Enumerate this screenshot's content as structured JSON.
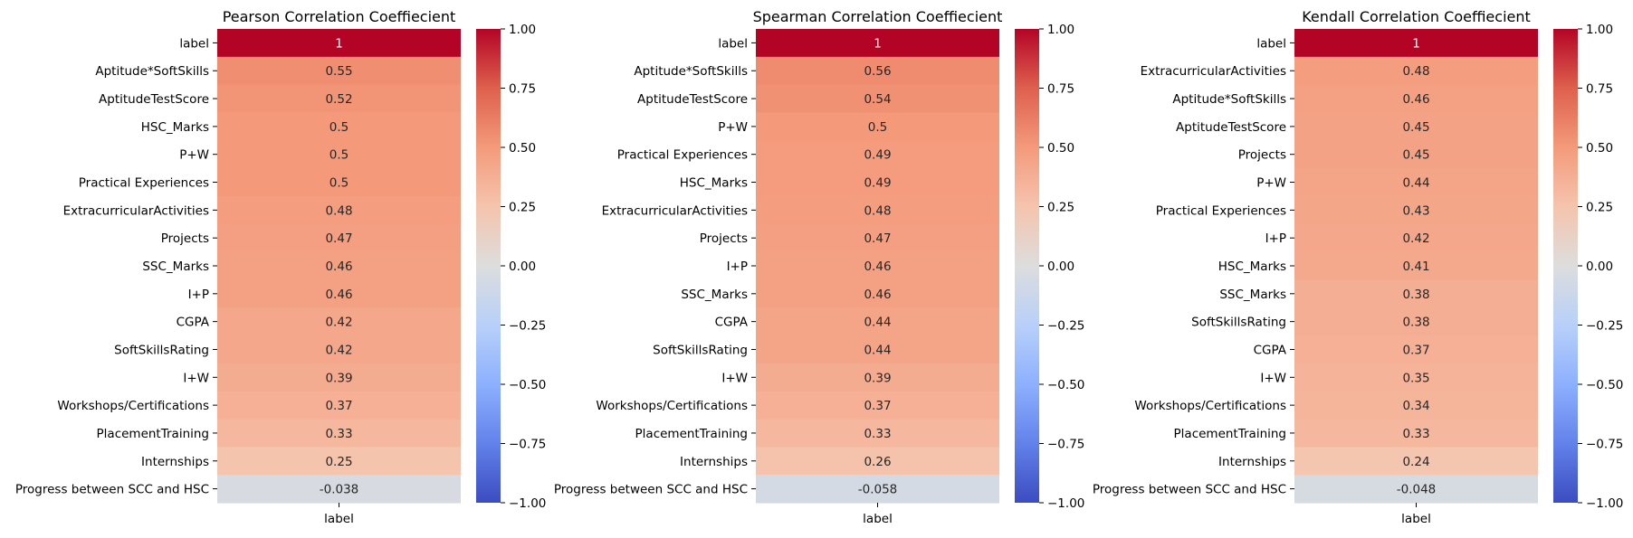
{
  "chart_data": [
    {
      "type": "heatmap",
      "title": "Pearson Correlation Coeffiecient",
      "xlabel": "",
      "x_tick_labels": [
        "label"
      ],
      "y_tick_labels": [
        "label",
        "Aptitude*SoftSkills",
        "AptitudeTestScore",
        "HSC_Marks",
        "P+W",
        "Practical Experiences",
        "ExtracurricularActivities",
        "Projects",
        "SSC_Marks",
        "I+P",
        "CGPA",
        "SoftSkillsRating",
        "I+W",
        "Workshops/Certifications",
        "PlacementTraining",
        "Internships",
        "Progress between SCC and HSC"
      ],
      "values": [
        1,
        0.55,
        0.52,
        0.5,
        0.5,
        0.5,
        0.48,
        0.47,
        0.46,
        0.46,
        0.42,
        0.42,
        0.39,
        0.37,
        0.33,
        0.25,
        -0.038
      ],
      "value_labels": [
        "1",
        "0.55",
        "0.52",
        "0.5",
        "0.5",
        "0.5",
        "0.48",
        "0.47",
        "0.46",
        "0.46",
        "0.42",
        "0.42",
        "0.39",
        "0.37",
        "0.33",
        "0.25",
        "-0.038"
      ],
      "colormap": "coolwarm",
      "vmin": -1,
      "vmax": 1,
      "colorbar_ticks": [
        "1.00",
        "0.75",
        "0.50",
        "0.25",
        "0.00",
        "−0.25",
        "−0.50",
        "−0.75",
        "−1.00"
      ]
    },
    {
      "type": "heatmap",
      "title": "Spearman Correlation Coeffiecient",
      "xlabel": "",
      "x_tick_labels": [
        "label"
      ],
      "y_tick_labels": [
        "label",
        "Aptitude*SoftSkills",
        "AptitudeTestScore",
        "P+W",
        "Practical Experiences",
        "HSC_Marks",
        "ExtracurricularActivities",
        "Projects",
        "I+P",
        "SSC_Marks",
        "CGPA",
        "SoftSkillsRating",
        "I+W",
        "Workshops/Certifications",
        "PlacementTraining",
        "Internships",
        "Progress between SCC and HSC"
      ],
      "values": [
        1,
        0.56,
        0.54,
        0.5,
        0.49,
        0.49,
        0.48,
        0.47,
        0.46,
        0.46,
        0.44,
        0.44,
        0.39,
        0.37,
        0.33,
        0.26,
        -0.058
      ],
      "value_labels": [
        "1",
        "0.56",
        "0.54",
        "0.5",
        "0.49",
        "0.49",
        "0.48",
        "0.47",
        "0.46",
        "0.46",
        "0.44",
        "0.44",
        "0.39",
        "0.37",
        "0.33",
        "0.26",
        "-0.058"
      ],
      "colormap": "coolwarm",
      "vmin": -1,
      "vmax": 1,
      "colorbar_ticks": [
        "1.00",
        "0.75",
        "0.50",
        "0.25",
        "0.00",
        "−0.25",
        "−0.50",
        "−0.75",
        "−1.00"
      ]
    },
    {
      "type": "heatmap",
      "title": "Kendall Correlation Coeffiecient",
      "xlabel": "",
      "x_tick_labels": [
        "label"
      ],
      "y_tick_labels": [
        "label",
        "ExtracurricularActivities",
        "Aptitude*SoftSkills",
        "AptitudeTestScore",
        "Projects",
        "P+W",
        "Practical Experiences",
        "I+P",
        "HSC_Marks",
        "SSC_Marks",
        "SoftSkillsRating",
        "CGPA",
        "I+W",
        "Workshops/Certifications",
        "PlacementTraining",
        "Internships",
        "Progress between SCC and HSC"
      ],
      "values": [
        1,
        0.48,
        0.46,
        0.45,
        0.45,
        0.44,
        0.43,
        0.42,
        0.41,
        0.38,
        0.38,
        0.37,
        0.35,
        0.34,
        0.33,
        0.24,
        -0.048
      ],
      "value_labels": [
        "1",
        "0.48",
        "0.46",
        "0.45",
        "0.45",
        "0.44",
        "0.43",
        "0.42",
        "0.41",
        "0.38",
        "0.38",
        "0.37",
        "0.35",
        "0.34",
        "0.33",
        "0.24",
        "-0.048"
      ],
      "colormap": "coolwarm",
      "vmin": -1,
      "vmax": 1,
      "colorbar_ticks": [
        "1.00",
        "0.75",
        "0.50",
        "0.25",
        "0.00",
        "−0.25",
        "−0.50",
        "−0.75",
        "−1.00"
      ]
    }
  ]
}
